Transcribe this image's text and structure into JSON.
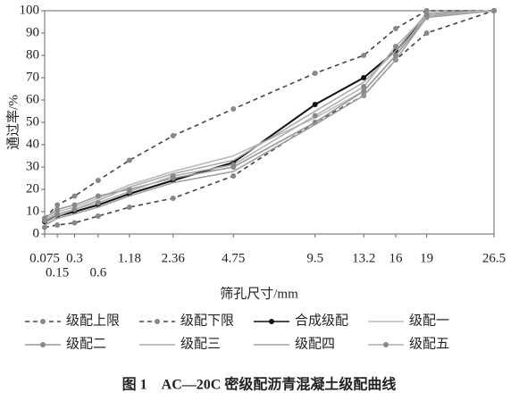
{
  "chart_data": {
    "type": "line",
    "title": "图 1　AC—20C 密级配沥青混凝土级配曲线",
    "x_label": "筛孔尺寸/mm",
    "y_label": "通过率/%",
    "x_scale_power": 0.45,
    "x": [
      0.075,
      0.15,
      0.3,
      0.6,
      1.18,
      2.36,
      4.75,
      9.5,
      13.2,
      16,
      19,
      26.5
    ],
    "xlim": [
      0.075,
      26.5
    ],
    "xticks": [
      0.075,
      0.15,
      0.3,
      0.6,
      1.18,
      2.36,
      4.75,
      9.5,
      13.2,
      16,
      19,
      26.5
    ],
    "ylim": [
      0,
      100
    ],
    "yticks": [
      0,
      10,
      20,
      30,
      40,
      50,
      60,
      70,
      80,
      90,
      100
    ],
    "series": [
      {
        "name": "级配上限",
        "color": "#444444",
        "dash": true,
        "marker": true,
        "values": [
          7,
          13,
          17,
          24,
          33,
          44,
          56,
          72,
          80,
          92,
          100,
          100
        ]
      },
      {
        "name": "级配下限",
        "color": "#444444",
        "dash": true,
        "marker": true,
        "values": [
          3,
          4,
          5,
          8,
          12,
          16,
          26,
          50,
          62,
          78,
          90,
          100
        ]
      },
      {
        "name": "合成级配",
        "color": "#111111",
        "dash": false,
        "marker": true,
        "values": [
          5.5,
          8,
          10,
          13,
          18,
          24,
          32,
          58,
          70,
          82,
          98,
          100
        ]
      },
      {
        "name": "级配一",
        "color": "#bbbbbb",
        "dash": false,
        "marker": false,
        "values": [
          6,
          10,
          12,
          16,
          22,
          28,
          35,
          52,
          64,
          80,
          98,
          100
        ]
      },
      {
        "name": "级配二",
        "color": "#999999",
        "dash": false,
        "marker": true,
        "values": [
          7,
          11,
          13,
          17,
          20,
          25,
          30,
          50,
          64,
          80,
          97,
          100
        ]
      },
      {
        "name": "级配三",
        "color": "#aaaaaa",
        "dash": false,
        "marker": false,
        "values": [
          5,
          8,
          11,
          15,
          21,
          27,
          33,
          55,
          68,
          82,
          99,
          100
        ]
      },
      {
        "name": "级配四",
        "color": "#a0a0a0",
        "dash": false,
        "marker": false,
        "values": [
          4,
          7,
          9,
          12,
          17,
          23,
          28,
          49,
          62,
          78,
          97,
          100
        ]
      },
      {
        "name": "级配五",
        "color": "#b0b0b0",
        "dash": false,
        "marker": true,
        "values": [
          6,
          9,
          11,
          14,
          19,
          26,
          31,
          53,
          66,
          84,
          98,
          100
        ]
      }
    ]
  }
}
